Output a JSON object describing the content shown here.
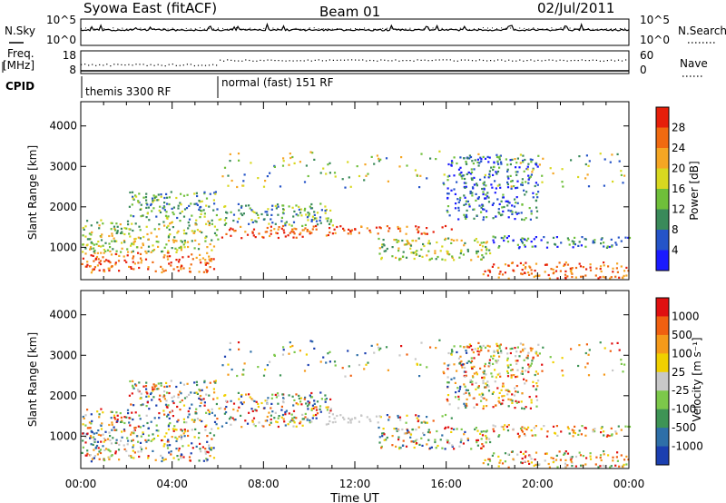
{
  "header": {
    "station": "Syowa East (fitACF)",
    "beam": "Beam 01",
    "date": "02/Jul/2011"
  },
  "noise_panel": {
    "left_label": "N.Sky",
    "right_label": "N.Search",
    "left_ticks": [
      "10^5",
      "10^0"
    ],
    "right_ticks": [
      "10^5",
      "10^0"
    ]
  },
  "freq_panel": {
    "left_label_line1": "Freq.",
    "left_label_line2": "[MHz]",
    "right_label": "Nave",
    "left_ticks": [
      "18",
      "8"
    ],
    "right_ticks": [
      "60",
      "0"
    ]
  },
  "cpid": {
    "label": "CPID",
    "segments": [
      {
        "name": "themis 3300 RF",
        "start_hour": 0
      },
      {
        "name": "normal (fast) 151 RF",
        "start_hour": 6
      }
    ]
  },
  "chart_data": [
    {
      "type": "heatmap",
      "title": "",
      "xlabel": "Time UT",
      "ylabel": "Slant Range [km]",
      "xlim_hours": [
        0,
        24
      ],
      "ylim": [
        200,
        4600
      ],
      "y_ticks": [
        1000,
        2000,
        3000,
        4000
      ],
      "colorbar": {
        "label": "Power [dB]",
        "ticks": [
          "4",
          "8",
          "12",
          "16",
          "20",
          "24",
          "28"
        ],
        "colors": [
          "#1a1aff",
          "#2554c8",
          "#3a8a5a",
          "#6fbf3a",
          "#d8d820",
          "#f5a623",
          "#f06a10",
          "#e61f0a"
        ]
      }
    },
    {
      "type": "heatmap",
      "title": "",
      "xlabel": "Time UT",
      "ylabel": "Slant Range [km]",
      "xlim_hours": [
        0,
        24
      ],
      "ylim": [
        200,
        4600
      ],
      "y_ticks": [
        1000,
        2000,
        3000,
        4000
      ],
      "colorbar": {
        "label": "Velocity [m s⁻¹]",
        "ticks": [
          "1000",
          "500",
          "100",
          "25",
          "-25",
          "-100",
          "-500",
          "-1000"
        ],
        "colors": [
          "#1b3fb0",
          "#2e6fa8",
          "#3e9455",
          "#7cc84a",
          "#c8c8c8",
          "#f0d000",
          "#f59a1a",
          "#f06010",
          "#e01010"
        ]
      }
    }
  ],
  "x_ticks": [
    "00:00",
    "04:00",
    "08:00",
    "12:00",
    "16:00",
    "20:00",
    "00:00"
  ]
}
